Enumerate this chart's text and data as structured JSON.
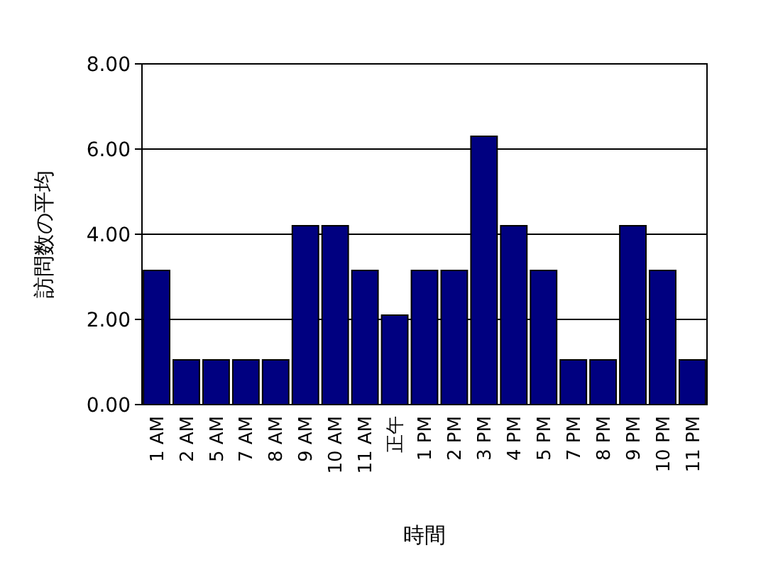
{
  "chart_data": {
    "type": "bar",
    "xlabel": "時間",
    "ylabel": "訪問数の平均",
    "categories": [
      "1 AM",
      "2 AM",
      "5 AM",
      "7 AM",
      "8 AM",
      "9 AM",
      "10 AM",
      "11 AM",
      "正午",
      "1 PM",
      "2 PM",
      "3 PM",
      "4 PM",
      "5 PM",
      "7 PM",
      "8 PM",
      "9 PM",
      "10 PM",
      "11 PM"
    ],
    "values": [
      3.15,
      1.05,
      1.05,
      1.05,
      1.05,
      4.2,
      4.2,
      3.15,
      2.1,
      3.15,
      3.15,
      6.3,
      4.2,
      3.15,
      1.05,
      1.05,
      4.2,
      3.15,
      1.05
    ],
    "color": "#000080",
    "ylim": [
      0,
      8
    ],
    "yticks": [
      {
        "value": 0,
        "label": "0.00"
      },
      {
        "value": 2,
        "label": "2.00"
      },
      {
        "value": 4,
        "label": "4.00"
      },
      {
        "value": 6,
        "label": "6.00"
      },
      {
        "value": 8,
        "label": "8.00"
      }
    ],
    "grid": "y"
  }
}
